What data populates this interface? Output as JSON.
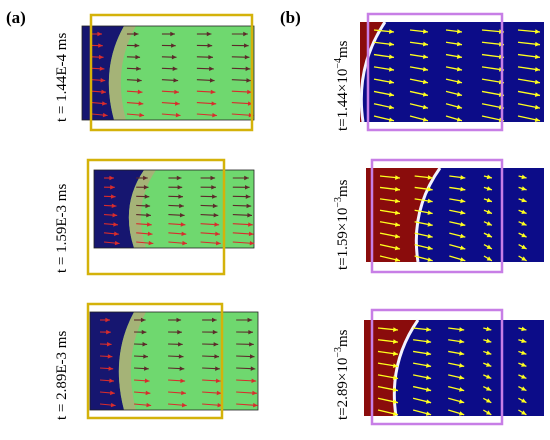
{
  "figure": {
    "panel_a": {
      "label": "(a)",
      "rows": [
        {
          "time_label": "t = 1.44E-4 ms"
        },
        {
          "time_label": "t = 1.59E-3 ms"
        },
        {
          "time_label": "t = 2.89E-3 ms"
        }
      ]
    },
    "panel_b": {
      "label": "(b)",
      "rows": [
        {
          "time_prefix": "t=1.44×10",
          "time_exp": "−4",
          "time_unit": "ms"
        },
        {
          "time_prefix": "t=1.59×10",
          "time_exp": "−3",
          "time_unit": "ms"
        },
        {
          "time_prefix": "t=2.89×10",
          "time_exp": "−3",
          "time_unit": "ms"
        }
      ]
    },
    "colors": {
      "a_domain_green": "#6fd86f",
      "a_dark_blue": "#161670",
      "a_highlight_box": "#d4b20a",
      "a_arrow_dark": "#5c2a2a",
      "a_arrow_red": "#d82c2c",
      "b_blue": "#0c0c88",
      "b_red": "#8a0c0c",
      "b_highlight_box": "#c77ee6",
      "b_arrow_yellow": "#ffff1e"
    }
  }
}
